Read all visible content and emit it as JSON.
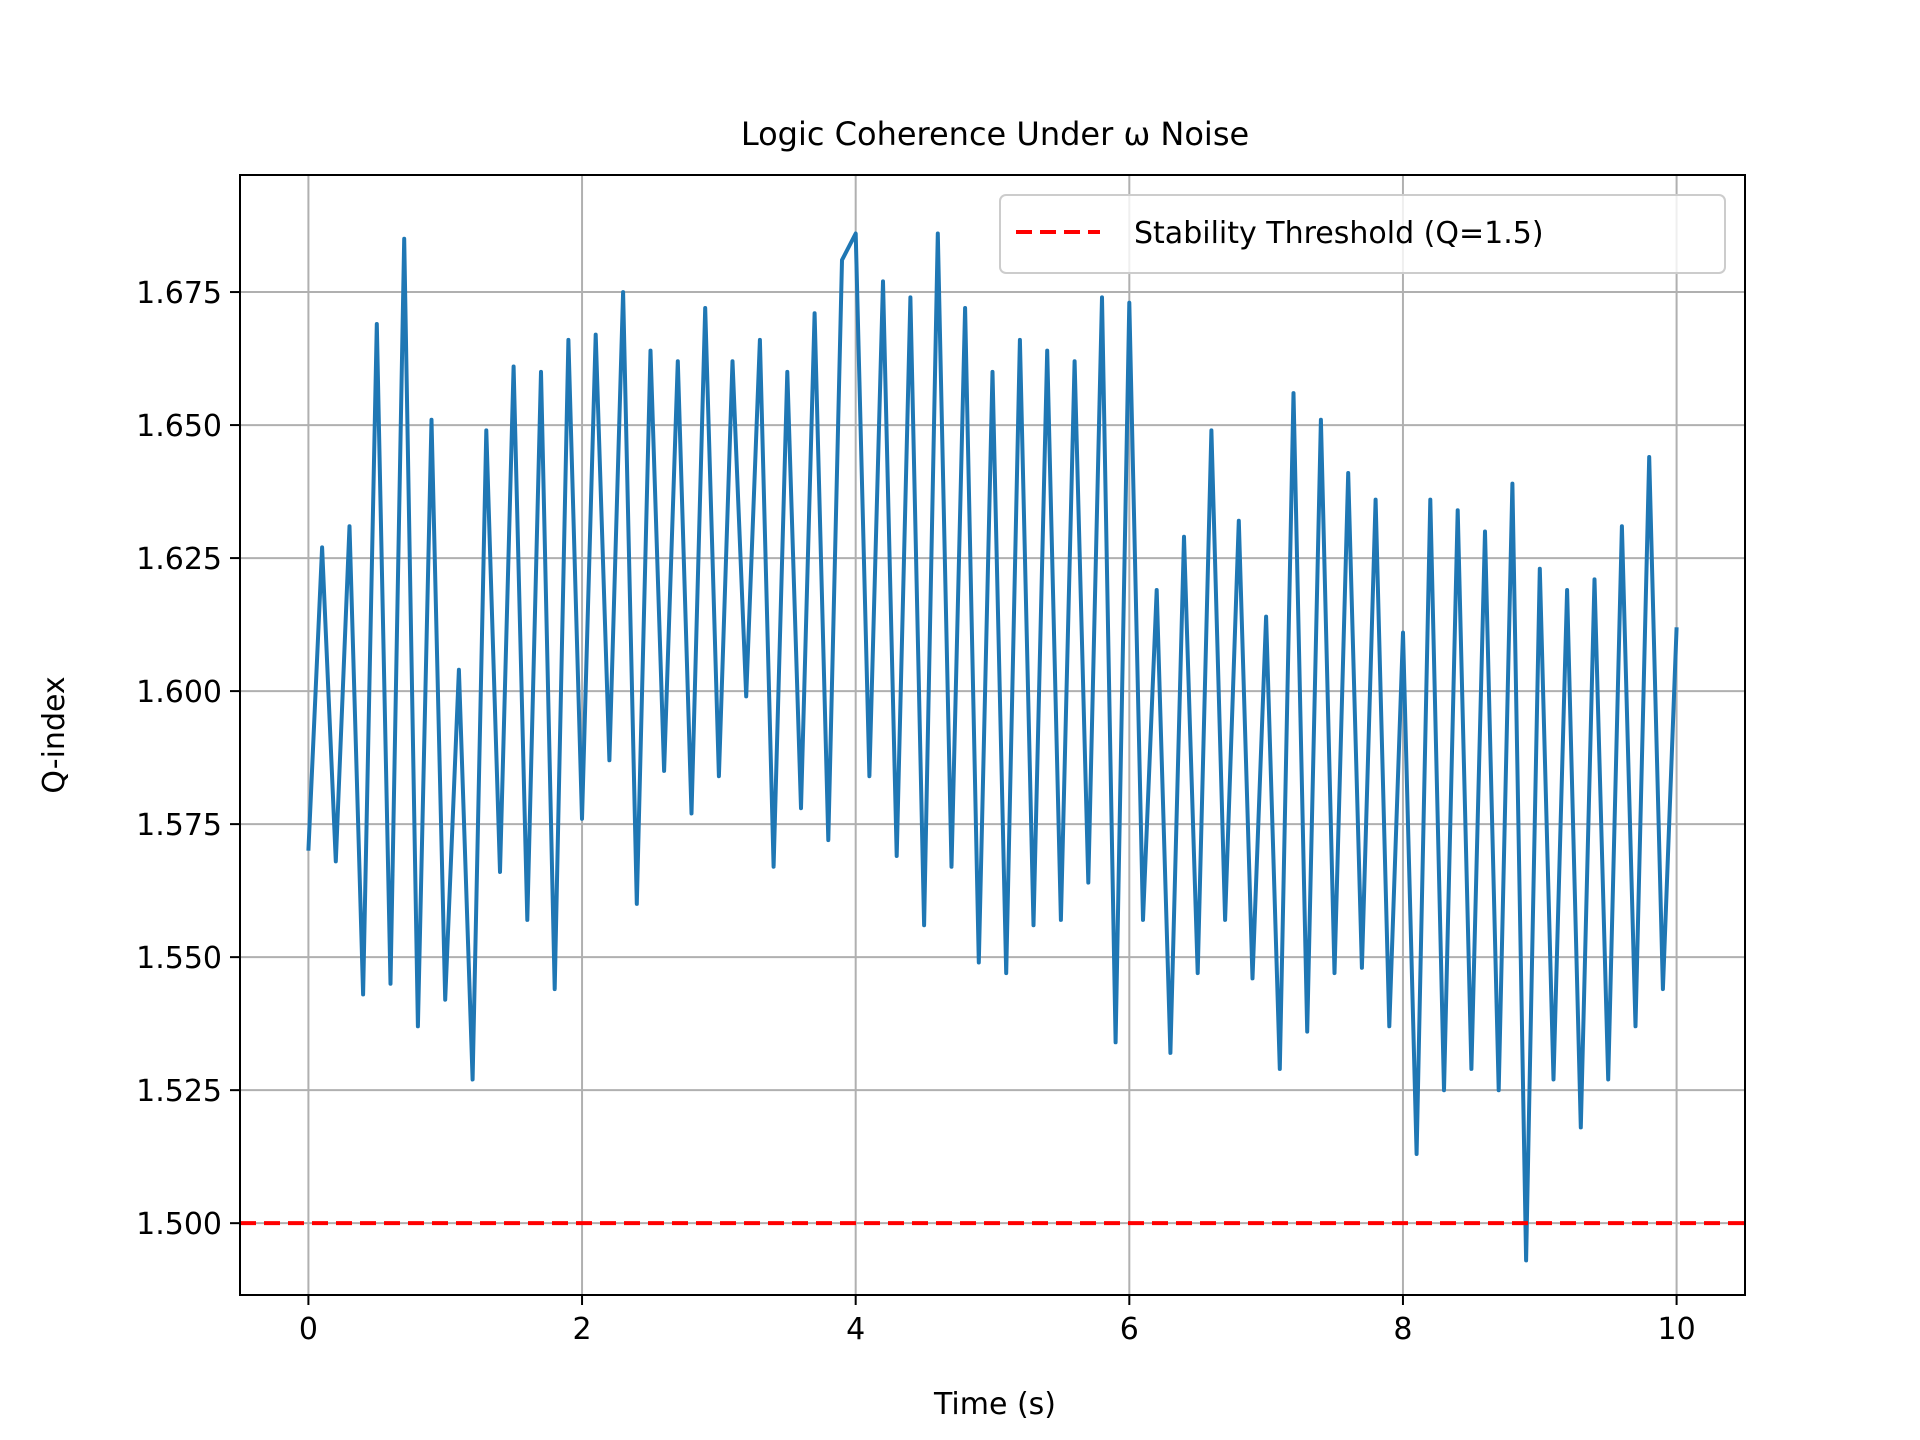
{
  "chart_data": {
    "type": "line",
    "title": "Logic Coherence Under ω Noise",
    "xlabel": "Time (s)",
    "ylabel": "Q-index",
    "xlim": [
      -0.5,
      10.5
    ],
    "ylim": [
      1.4865,
      1.697
    ],
    "x_ticks": [
      0,
      2,
      4,
      6,
      8,
      10
    ],
    "y_ticks": [
      1.5,
      1.525,
      1.55,
      1.575,
      1.6,
      1.625,
      1.65,
      1.675
    ],
    "grid": true,
    "legend": {
      "location": "top-right",
      "entries": [
        "Stability Threshold (Q=1.5)"
      ]
    },
    "series": [
      {
        "color": "#1f77b4",
        "x": [
          0.0,
          0.1,
          0.2,
          0.3,
          0.4,
          0.5,
          0.6,
          0.7,
          0.8,
          0.9,
          1.0,
          1.1,
          1.2,
          1.3,
          1.4,
          1.5,
          1.6,
          1.7,
          1.8,
          1.9,
          2.0,
          2.1,
          2.2,
          2.3,
          2.4,
          2.5,
          2.6,
          2.7,
          2.8,
          2.9,
          3.0,
          3.1,
          3.2,
          3.3,
          3.4,
          3.5,
          3.6,
          3.7,
          3.8,
          3.9,
          4.0,
          4.1,
          4.2,
          4.3,
          4.4,
          4.5,
          4.6,
          4.7,
          4.8,
          4.9,
          5.0,
          5.1,
          5.2,
          5.3,
          5.4,
          5.5,
          5.6,
          5.7,
          5.8,
          5.9,
          6.0,
          6.1,
          6.2,
          6.3,
          6.4,
          6.5,
          6.6,
          6.7,
          6.8,
          6.9,
          7.0,
          7.1,
          7.2,
          7.3,
          7.4,
          7.5,
          7.6,
          7.7,
          7.8,
          7.9,
          8.0,
          8.1,
          8.2,
          8.3,
          8.4,
          8.5,
          8.6,
          8.7,
          8.8,
          8.9,
          9.0,
          9.1,
          9.2,
          9.3,
          9.4,
          9.5,
          9.6,
          9.7,
          9.8,
          9.9,
          10.0
        ],
        "values": [
          1.57,
          1.627,
          1.568,
          1.631,
          1.543,
          1.669,
          1.545,
          1.685,
          1.537,
          1.651,
          1.542,
          1.604,
          1.527,
          1.649,
          1.566,
          1.661,
          1.557,
          1.66,
          1.544,
          1.666,
          1.576,
          1.667,
          1.587,
          1.675,
          1.56,
          1.664,
          1.585,
          1.662,
          1.577,
          1.672,
          1.584,
          1.662,
          1.599,
          1.666,
          1.567,
          1.66,
          1.578,
          1.671,
          1.572,
          1.681,
          1.686,
          1.584,
          1.677,
          1.569,
          1.674,
          1.556,
          1.686,
          1.567,
          1.672,
          1.549,
          1.66,
          1.547,
          1.666,
          1.556,
          1.664,
          1.557,
          1.662,
          1.564,
          1.674,
          1.534,
          1.673,
          1.557,
          1.619,
          1.532,
          1.629,
          1.547,
          1.649,
          1.557,
          1.632,
          1.546,
          1.614,
          1.529,
          1.656,
          1.536,
          1.651,
          1.547,
          1.641,
          1.548,
          1.636,
          1.537,
          1.611,
          1.513,
          1.636,
          1.525,
          1.634,
          1.529,
          1.63,
          1.525,
          1.639,
          1.493,
          1.623,
          1.527,
          1.619,
          1.518,
          1.621,
          1.527,
          1.631,
          1.537,
          1.644,
          1.544,
          1.612
        ]
      },
      {
        "name": "Stability Threshold (Q=1.5)",
        "color": "#ff0000",
        "style": "dashed",
        "y": 1.5
      }
    ]
  }
}
